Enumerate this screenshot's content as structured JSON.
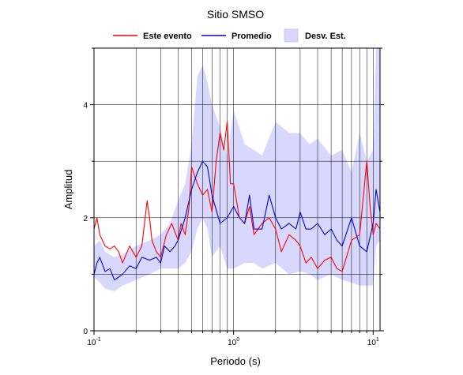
{
  "chart_data": {
    "type": "line",
    "title": "Sitio SMSO",
    "xlabel": "Periodo (s)",
    "ylabel": "Amplitud",
    "xscale": "log",
    "xlim": [
      0.1,
      11.2
    ],
    "ylim": [
      0,
      5
    ],
    "grid": true,
    "legend_position": "top",
    "x_ticks": [
      {
        "value": 0.1,
        "base": "10",
        "exp": "-1"
      },
      {
        "value": 1,
        "base": "10",
        "exp": "0"
      },
      {
        "value": 10,
        "base": "10",
        "exp": "1"
      }
    ],
    "y_ticks": [
      {
        "value": 0,
        "label": "0"
      },
      {
        "value": 2,
        "label": "2"
      },
      {
        "value": 4,
        "label": "4"
      }
    ],
    "legend": {
      "este_evento": "Este evento",
      "promedio": "Promedio",
      "desv": "Desv. Est."
    },
    "colors": {
      "este_evento": "#ff0000",
      "promedio": "#0000dd",
      "desv_fill": "#d8d8ff"
    },
    "series": [
      {
        "name": "Este evento",
        "x": [
          0.1,
          0.105,
          0.11,
          0.12,
          0.13,
          0.14,
          0.15,
          0.16,
          0.18,
          0.2,
          0.22,
          0.23,
          0.24,
          0.25,
          0.26,
          0.28,
          0.3,
          0.33,
          0.36,
          0.4,
          0.42,
          0.45,
          0.48,
          0.5,
          0.55,
          0.6,
          0.65,
          0.7,
          0.75,
          0.8,
          0.85,
          0.9,
          0.95,
          1.0,
          1.1,
          1.2,
          1.3,
          1.4,
          1.6,
          1.8,
          2.0,
          2.2,
          2.5,
          2.8,
          3.0,
          3.3,
          3.6,
          4.0,
          4.5,
          5.0,
          5.5,
          6.0,
          7.0,
          8.0,
          9.0,
          9.5,
          10.0,
          10.5,
          11.2
        ],
        "y": [
          1.8,
          2.0,
          1.7,
          1.5,
          1.45,
          1.5,
          1.4,
          1.2,
          1.5,
          1.3,
          1.5,
          1.9,
          2.3,
          2.0,
          1.6,
          1.4,
          1.3,
          1.7,
          1.9,
          1.6,
          1.9,
          1.7,
          2.2,
          2.9,
          2.6,
          2.4,
          2.5,
          2.1,
          3.0,
          3.5,
          3.2,
          3.7,
          2.6,
          2.6,
          2.0,
          1.9,
          2.2,
          1.7,
          1.9,
          2.0,
          1.8,
          1.4,
          1.7,
          1.6,
          1.5,
          1.2,
          1.3,
          1.1,
          1.25,
          1.3,
          1.1,
          1.05,
          1.6,
          1.7,
          3.0,
          2.2,
          1.7,
          1.9,
          1.8
        ]
      },
      {
        "name": "Promedio",
        "x": [
          0.1,
          0.105,
          0.11,
          0.12,
          0.13,
          0.14,
          0.15,
          0.16,
          0.18,
          0.2,
          0.22,
          0.25,
          0.28,
          0.3,
          0.32,
          0.35,
          0.38,
          0.4,
          0.45,
          0.5,
          0.55,
          0.6,
          0.65,
          0.7,
          0.8,
          0.9,
          1.0,
          1.1,
          1.2,
          1.3,
          1.4,
          1.6,
          1.8,
          2.0,
          2.2,
          2.5,
          2.8,
          3.0,
          3.3,
          3.6,
          4.0,
          4.5,
          5.0,
          5.5,
          6.0,
          7.0,
          8.0,
          9.0,
          10.0,
          10.5,
          11.2
        ],
        "y": [
          1.0,
          1.2,
          1.3,
          1.05,
          1.1,
          0.9,
          0.95,
          1.0,
          1.15,
          1.1,
          1.3,
          1.25,
          1.3,
          1.2,
          1.5,
          1.4,
          1.5,
          1.6,
          2.0,
          2.5,
          2.8,
          3.0,
          2.9,
          2.4,
          1.9,
          2.0,
          2.2,
          2.0,
          1.9,
          2.4,
          1.8,
          1.8,
          2.4,
          2.0,
          1.8,
          1.9,
          1.8,
          2.1,
          1.8,
          1.8,
          1.9,
          1.7,
          1.8,
          1.6,
          1.5,
          2.0,
          1.5,
          1.4,
          1.9,
          2.5,
          2.1
        ]
      }
    ],
    "band": {
      "name": "Desv. Est.",
      "x": [
        0.1,
        0.11,
        0.12,
        0.14,
        0.16,
        0.2,
        0.25,
        0.3,
        0.35,
        0.4,
        0.45,
        0.5,
        0.55,
        0.6,
        0.65,
        0.7,
        0.8,
        0.9,
        1.0,
        1.2,
        1.4,
        1.6,
        2.0,
        2.5,
        3.0,
        3.5,
        4.0,
        5.0,
        6.0,
        7.0,
        8.0,
        9.0,
        10.0,
        10.5,
        11.2
      ],
      "upper": [
        1.5,
        1.6,
        1.4,
        1.3,
        1.35,
        1.5,
        1.6,
        1.7,
        1.9,
        2.3,
        2.6,
        3.3,
        4.5,
        4.7,
        4.4,
        4.0,
        3.6,
        3.1,
        3.9,
        3.3,
        3.2,
        3.1,
        3.7,
        3.5,
        3.5,
        3.3,
        3.4,
        3.1,
        3.2,
        2.8,
        3.5,
        3.0,
        3.2,
        5.0,
        5.0
      ],
      "lower": [
        0.95,
        0.85,
        0.75,
        0.7,
        0.8,
        0.9,
        1.0,
        1.1,
        1.1,
        1.1,
        1.2,
        1.4,
        1.8,
        2.0,
        1.8,
        1.3,
        1.5,
        1.1,
        1.1,
        1.2,
        1.2,
        1.1,
        1.2,
        1.0,
        1.05,
        1.0,
        0.9,
        1.0,
        0.9,
        0.85,
        0.8,
        0.8,
        0.8,
        1.5,
        1.6
      ]
    }
  }
}
